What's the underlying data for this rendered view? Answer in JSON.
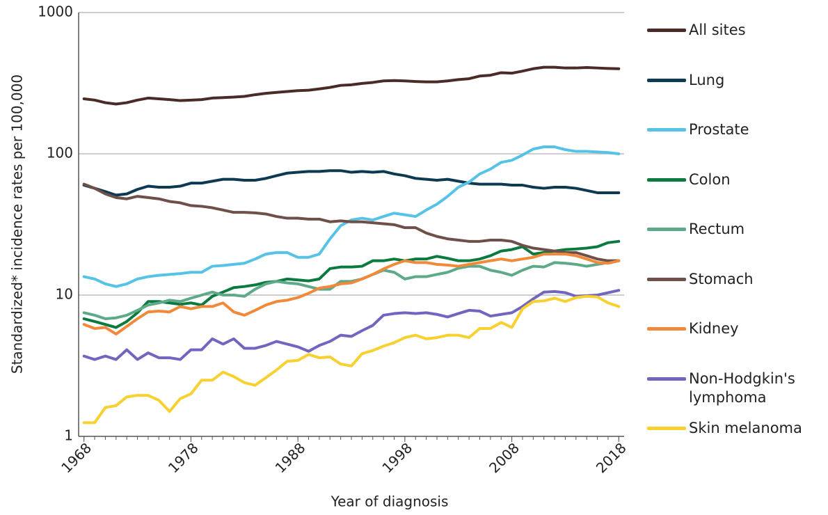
{
  "chart_data": {
    "type": "line",
    "x_label": "Year of diagnosis",
    "y_label": "Standardized* incidence rates per 100,000",
    "x": [
      1968,
      1969,
      1970,
      1971,
      1972,
      1973,
      1974,
      1975,
      1976,
      1977,
      1978,
      1979,
      1980,
      1981,
      1982,
      1983,
      1984,
      1985,
      1986,
      1987,
      1988,
      1989,
      1990,
      1991,
      1992,
      1993,
      1994,
      1995,
      1996,
      1997,
      1998,
      1999,
      2000,
      2001,
      2002,
      2003,
      2004,
      2005,
      2006,
      2007,
      2008,
      2009,
      2010,
      2011,
      2012,
      2013,
      2014,
      2015,
      2016,
      2017,
      2018
    ],
    "xlim": [
      1967.5,
      2018.5
    ],
    "xticks": [
      1968,
      1978,
      1988,
      1998,
      2008,
      2018
    ],
    "ylim": [
      1,
      1000
    ],
    "yticks": [
      1,
      10,
      100,
      1000
    ],
    "log_y": true,
    "grid": true,
    "series": [
      {
        "name": "All sites",
        "color": "#4b2b28",
        "values": [
          245,
          240,
          230,
          225,
          230,
          240,
          248,
          245,
          242,
          238,
          240,
          242,
          248,
          250,
          252,
          255,
          262,
          268,
          272,
          276,
          280,
          282,
          288,
          295,
          305,
          308,
          315,
          320,
          328,
          330,
          328,
          325,
          323,
          323,
          328,
          335,
          340,
          355,
          360,
          375,
          372,
          385,
          400,
          410,
          410,
          405,
          405,
          408,
          405,
          402,
          400
        ]
      },
      {
        "name": "Lung",
        "color": "#0d3a52",
        "values": [
          60,
          57,
          54,
          51,
          52,
          56,
          59,
          58,
          58,
          59,
          62,
          62,
          64,
          66,
          66,
          65,
          65,
          67,
          70,
          73,
          74,
          75,
          75,
          76,
          76,
          74,
          75,
          74,
          75,
          72,
          70,
          67,
          66,
          65,
          66,
          64,
          62,
          61,
          61,
          61,
          60,
          60,
          58,
          57,
          58,
          58,
          57,
          55,
          53,
          53,
          53
        ]
      },
      {
        "name": "Prostate",
        "color": "#56c3e6",
        "values": [
          13.5,
          13,
          12,
          11.5,
          12,
          13,
          13.5,
          13.8,
          14,
          14.2,
          14.5,
          14.5,
          16,
          16.2,
          16.5,
          16.8,
          18,
          19.5,
          20,
          20,
          18.5,
          18.5,
          19.5,
          25,
          31,
          34,
          35,
          34,
          36,
          38,
          37,
          36,
          40,
          44,
          50,
          58,
          63,
          72,
          78,
          87,
          90,
          98,
          108,
          112,
          112,
          107,
          104,
          104,
          103,
          102,
          100
        ]
      },
      {
        "name": "Colon",
        "color": "#0a7a3e",
        "values": [
          6.8,
          6.5,
          6.2,
          5.9,
          6.5,
          7.5,
          9,
          9,
          8.8,
          8.6,
          8.8,
          8.5,
          9.8,
          10.5,
          11.3,
          11.5,
          11.8,
          12.3,
          12.5,
          13,
          12.8,
          12.6,
          13,
          15.4,
          15.8,
          15.8,
          16,
          17.5,
          17.5,
          18,
          17.5,
          18,
          18,
          18.8,
          18.2,
          17.5,
          17.5,
          18,
          19,
          20.5,
          21,
          22,
          19.5,
          20,
          20.5,
          21,
          21.2,
          21.5,
          22,
          23.5,
          24
        ]
      },
      {
        "name": "Rectum",
        "color": "#5eaa88",
        "values": [
          7.5,
          7.2,
          6.8,
          6.9,
          7.2,
          7.8,
          8.5,
          8.8,
          9.2,
          9,
          9.5,
          10,
          10.5,
          10,
          10,
          9.8,
          11,
          12,
          12.5,
          12.2,
          12,
          11.5,
          11,
          11,
          12.5,
          12.5,
          13,
          14,
          15,
          14.5,
          13,
          13.5,
          13.5,
          14,
          14.5,
          15.5,
          16,
          16,
          15,
          14.5,
          13.8,
          15,
          16,
          15.8,
          17,
          16.8,
          16.5,
          16,
          16.5,
          17,
          17.5
        ]
      },
      {
        "name": "Stomach",
        "color": "#6e4f4a",
        "values": [
          61,
          57,
          52,
          49,
          48,
          50,
          49,
          48,
          46,
          45,
          43,
          42.5,
          41.5,
          40,
          38.5,
          38.5,
          38.2,
          37.5,
          36,
          35,
          35,
          34.5,
          34.5,
          33,
          33.5,
          33,
          33,
          32.5,
          32,
          31.5,
          30,
          30,
          27.5,
          26,
          25,
          24.5,
          24,
          24,
          24.5,
          24.5,
          24,
          22.5,
          21.5,
          21,
          20.5,
          20,
          20,
          19,
          18,
          17.5,
          17.5
        ]
      },
      {
        "name": "Kidney",
        "color": "#f08a3a",
        "values": [
          6.2,
          5.8,
          5.9,
          5.3,
          6,
          6.8,
          7.6,
          7.7,
          7.6,
          8.3,
          8,
          8.3,
          8.3,
          8.8,
          7.6,
          7.2,
          7.8,
          8.5,
          9,
          9.2,
          9.6,
          10.3,
          11.2,
          11.5,
          12,
          12.2,
          13,
          14,
          15.3,
          16.5,
          17.5,
          17,
          17,
          16.5,
          16.3,
          16,
          16.5,
          17,
          17.5,
          18,
          17.5,
          18,
          18.5,
          19.5,
          19.5,
          19.5,
          19,
          18,
          17,
          16.8,
          17.5
        ]
      },
      {
        "name": "Non-Hodgkin's lymphoma",
        "color": "#7165c0",
        "values": [
          3.7,
          3.5,
          3.7,
          3.5,
          4.1,
          3.5,
          3.9,
          3.6,
          3.6,
          3.5,
          4.1,
          4.1,
          4.9,
          4.5,
          4.9,
          4.2,
          4.2,
          4.4,
          4.7,
          4.5,
          4.3,
          4.0,
          4.4,
          4.7,
          5.2,
          5.1,
          5.6,
          6.1,
          7.2,
          7.4,
          7.5,
          7.4,
          7.5,
          7.3,
          7.0,
          7.4,
          7.8,
          7.7,
          7.1,
          7.3,
          7.5,
          8.3,
          9.4,
          10.5,
          10.6,
          10.4,
          9.8,
          9.9,
          10,
          10.4,
          10.8
        ]
      },
      {
        "name": "Skin melanoma",
        "color": "#f8d030",
        "values": [
          1.25,
          1.25,
          1.6,
          1.65,
          1.9,
          1.95,
          1.95,
          1.8,
          1.5,
          1.85,
          2.0,
          2.5,
          2.5,
          2.85,
          2.65,
          2.4,
          2.3,
          2.6,
          2.95,
          3.4,
          3.45,
          3.8,
          3.6,
          3.65,
          3.25,
          3.15,
          3.85,
          4.05,
          4.35,
          4.6,
          5.0,
          5.2,
          4.9,
          5.0,
          5.2,
          5.2,
          5.0,
          5.8,
          5.8,
          6.4,
          5.9,
          8.0,
          9.0,
          9.1,
          9.5,
          9.0,
          9.6,
          9.8,
          9.7,
          8.8,
          8.3
        ]
      }
    ]
  }
}
